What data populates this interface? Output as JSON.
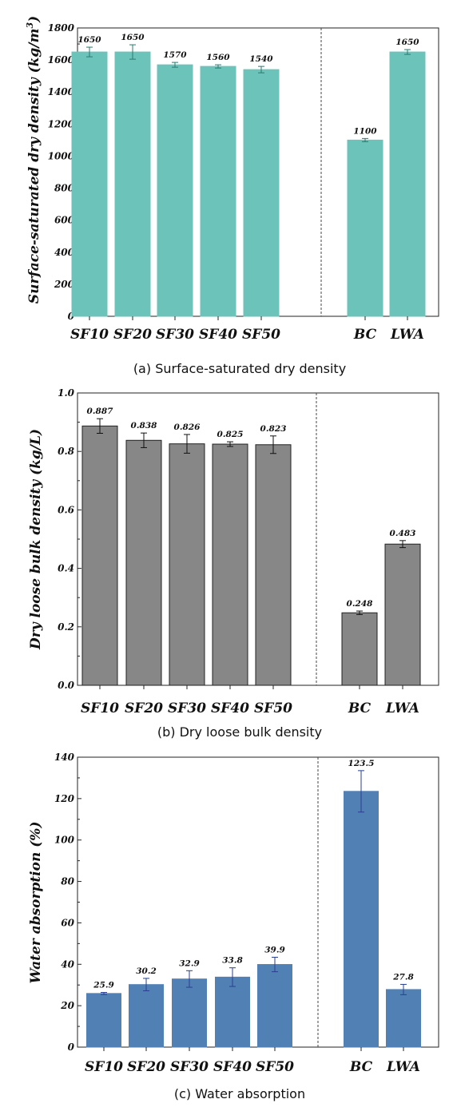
{
  "chart_data": [
    {
      "type": "bar",
      "caption": "(a) Surface-saturated dry density",
      "ylabel": "Surface-saturated dry density (kg/m",
      "ylabel_superscript": "3",
      "ylabel_suffix": ")",
      "categories": [
        "SF10",
        "SF20",
        "SF30",
        "SF40",
        "SF50",
        "BC",
        "LWA"
      ],
      "values": [
        1650,
        1650,
        1570,
        1560,
        1540,
        1100,
        1650
      ],
      "errors": [
        30,
        45,
        15,
        10,
        20,
        10,
        15
      ],
      "value_labels": [
        "1650",
        "1650",
        "1570",
        "1560",
        "1540",
        "1100",
        "1650"
      ],
      "ylim": [
        0,
        1800
      ],
      "yticks": [
        0,
        200,
        400,
        600,
        800,
        1000,
        1200,
        1400,
        1600,
        1800
      ],
      "ytick_labels": [
        "0",
        "200",
        "400",
        "600",
        "800",
        "1000",
        "1200",
        "1400",
        "1600",
        "1800"
      ],
      "bar_color": "#6cc3ba",
      "error_color": "#2b7a6e",
      "divider": "dashed line between SF50 and BC"
    },
    {
      "type": "bar",
      "caption": "(b) Dry loose bulk density",
      "ylabel": "Dry loose bulk density (kg/L)",
      "ylabel_superscript": "",
      "ylabel_suffix": "",
      "categories": [
        "SF10",
        "SF20",
        "SF30",
        "SF40",
        "SF50",
        "BC",
        "LWA"
      ],
      "values": [
        0.887,
        0.838,
        0.826,
        0.825,
        0.823,
        0.248,
        0.483
      ],
      "errors": [
        0.025,
        0.025,
        0.032,
        0.008,
        0.03,
        0.006,
        0.012
      ],
      "value_labels": [
        "0.887",
        "0.838",
        "0.826",
        "0.825",
        "0.823",
        "0.248",
        "0.483"
      ],
      "ylim": [
        0,
        1.0
      ],
      "yticks": [
        0,
        0.2,
        0.4,
        0.6,
        0.8,
        1.0
      ],
      "ytick_labels": [
        "0.0",
        "0.2",
        "0.4",
        "0.6",
        "0.8",
        "1.0"
      ],
      "bar_color": "#878787",
      "error_color": "#111111",
      "divider": "dashed line between SF50 and BC"
    },
    {
      "type": "bar",
      "caption": "(c) Water absorption",
      "ylabel": "Water absorption (%)",
      "ylabel_superscript": "",
      "ylabel_suffix": "",
      "categories": [
        "SF10",
        "SF20",
        "SF30",
        "SF40",
        "SF50",
        "BC",
        "LWA"
      ],
      "values": [
        25.9,
        30.2,
        32.9,
        33.8,
        39.9,
        123.5,
        27.8
      ],
      "errors": [
        0.5,
        3,
        4,
        4.5,
        3.5,
        10,
        2.5
      ],
      "value_labels": [
        "25.9",
        "30.2",
        "32.9",
        "33.8",
        "39.9",
        "123.5",
        "27.8"
      ],
      "ylim": [
        0,
        140
      ],
      "yticks": [
        0,
        20,
        40,
        60,
        80,
        100,
        120,
        140
      ],
      "ytick_labels": [
        "0",
        "20",
        "40",
        "60",
        "80",
        "100",
        "120",
        "140"
      ],
      "bar_color": "#5180b5",
      "error_color": "#2a3f8f",
      "divider": "dashed line between SF50 and BC"
    }
  ]
}
